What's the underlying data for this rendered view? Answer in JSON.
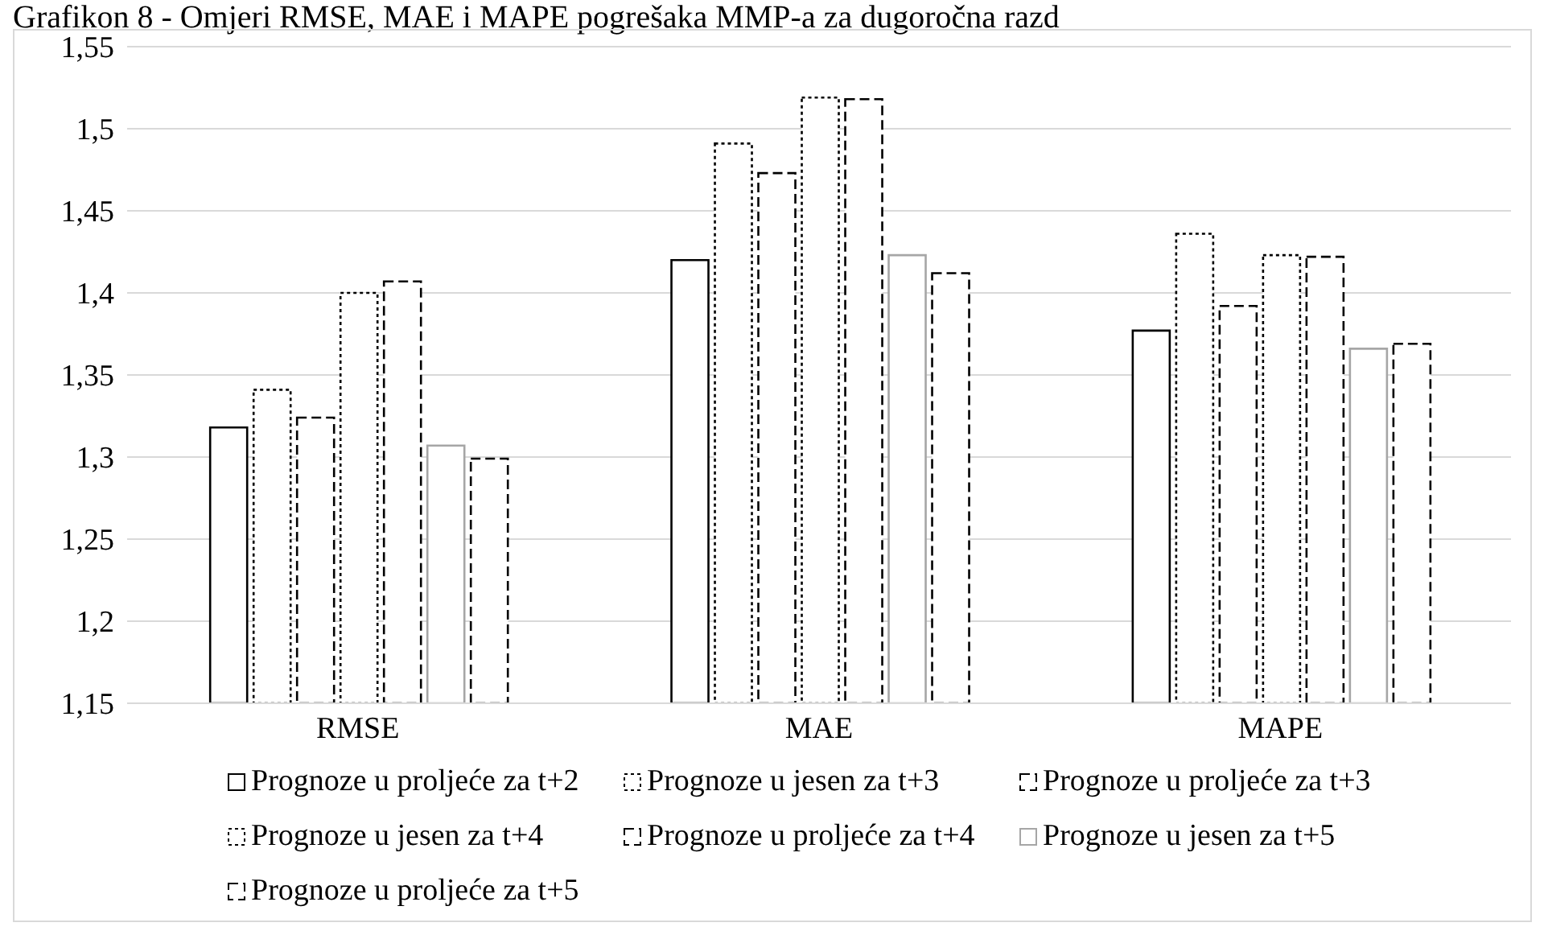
{
  "chart_data": {
    "type": "bar",
    "title": "Grafikon 8 - Omjeri RMSE, MAE i MAPE pogrešaka MMP-a za dugoročna razd",
    "categories": [
      "RMSE",
      "MAE",
      "MAPE"
    ],
    "series": [
      {
        "name": "Prognoze u proljeće za t+2",
        "color": "#000000",
        "line_style": "solid",
        "values": [
          1.318,
          1.42,
          1.377
        ]
      },
      {
        "name": "Prognoze u jesen za t+3",
        "color": "#000000",
        "line_style": "dotted",
        "values": [
          1.341,
          1.491,
          1.436
        ]
      },
      {
        "name": "Prognoze u proljeće za t+3",
        "color": "#000000",
        "line_style": "dashed",
        "values": [
          1.324,
          1.473,
          1.392
        ]
      },
      {
        "name": "Prognoze u jesen za t+4",
        "color": "#000000",
        "line_style": "dotted",
        "values": [
          1.4,
          1.519,
          1.423
        ]
      },
      {
        "name": "Prognoze u proljeće za t+4",
        "color": "#000000",
        "line_style": "dashed",
        "values": [
          1.407,
          1.518,
          1.422
        ]
      },
      {
        "name": "Prognoze u jesen za t+5",
        "color": "#a6a6a6",
        "line_style": "solid",
        "values": [
          1.307,
          1.423,
          1.366
        ]
      },
      {
        "name": "Prognoze u proljeće za t+5",
        "color": "#000000",
        "line_style": "dashed",
        "values": [
          1.299,
          1.412,
          1.369
        ]
      }
    ],
    "ylim": [
      1.15,
      1.55
    ],
    "yticks": [
      {
        "value": 1.15,
        "label": "1,15"
      },
      {
        "value": 1.2,
        "label": "1,2"
      },
      {
        "value": 1.25,
        "label": "1,25"
      },
      {
        "value": 1.3,
        "label": "1,3"
      },
      {
        "value": 1.35,
        "label": "1,35"
      },
      {
        "value": 1.4,
        "label": "1,4"
      },
      {
        "value": 1.45,
        "label": "1,45"
      },
      {
        "value": 1.5,
        "label": "1,5"
      },
      {
        "value": 1.55,
        "label": "1,55"
      }
    ],
    "grid": "y",
    "legend": "bottom"
  }
}
